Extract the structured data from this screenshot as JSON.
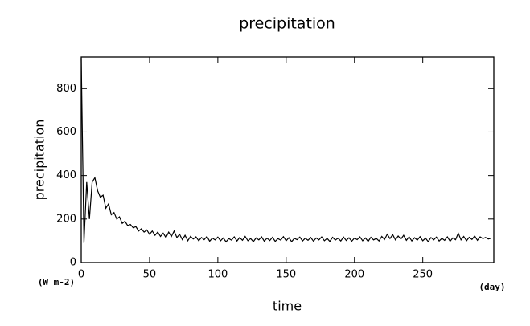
{
  "chart_data": {
    "type": "line",
    "title": "precipitation",
    "xlabel": "time",
    "ylabel": "precipitation",
    "x_unit": "(day)",
    "y_unit": "(W m-2)",
    "xlim": [
      0,
      302
    ],
    "ylim": [
      0,
      945
    ],
    "xticks": [
      0,
      50,
      100,
      150,
      200,
      250
    ],
    "yticks": [
      0,
      200,
      400,
      600,
      800
    ],
    "series": [
      {
        "name": "precipitation",
        "color": "#000000",
        "x": [
          0,
          2,
          4,
          6,
          8,
          10,
          12,
          14,
          16,
          18,
          20,
          22,
          24,
          26,
          28,
          30,
          32,
          34,
          36,
          38,
          40,
          42,
          44,
          46,
          48,
          50,
          52,
          54,
          56,
          58,
          60,
          62,
          64,
          66,
          68,
          70,
          72,
          74,
          76,
          78,
          80,
          82,
          84,
          86,
          88,
          90,
          92,
          94,
          96,
          98,
          100,
          102,
          104,
          106,
          108,
          110,
          112,
          114,
          116,
          118,
          120,
          122,
          124,
          126,
          128,
          130,
          132,
          134,
          136,
          138,
          140,
          142,
          144,
          146,
          148,
          150,
          152,
          154,
          156,
          158,
          160,
          162,
          164,
          166,
          168,
          170,
          172,
          174,
          176,
          178,
          180,
          182,
          184,
          186,
          188,
          190,
          192,
          194,
          196,
          198,
          200,
          202,
          204,
          206,
          208,
          210,
          212,
          214,
          216,
          218,
          220,
          222,
          224,
          226,
          228,
          230,
          232,
          234,
          236,
          238,
          240,
          242,
          244,
          246,
          248,
          250,
          252,
          254,
          256,
          258,
          260,
          262,
          264,
          266,
          268,
          270,
          272,
          274,
          276,
          278,
          280,
          282,
          284,
          286,
          288,
          290,
          292,
          294,
          296,
          298,
          300
        ],
        "values": [
          940,
          90,
          370,
          200,
          370,
          390,
          330,
          300,
          310,
          250,
          270,
          220,
          230,
          200,
          210,
          180,
          190,
          170,
          175,
          160,
          165,
          145,
          155,
          140,
          150,
          130,
          145,
          125,
          140,
          120,
          135,
          115,
          140,
          120,
          145,
          115,
          130,
          105,
          125,
          100,
          120,
          108,
          118,
          100,
          115,
          105,
          120,
          98,
          112,
          104,
          117,
          100,
          113,
          95,
          110,
          103,
          118,
          99,
          115,
          102,
          120,
          100,
          110,
          96,
          113,
          104,
          118,
          98,
          112,
          101,
          116,
          97,
          110,
          103,
          119,
          100,
          114,
          96,
          111,
          105,
          117,
          99,
          112,
          102,
          115,
          98,
          113,
          104,
          118,
          100,
          111,
          97,
          116,
          103,
          112,
          99,
          117,
          101,
          114,
          98,
          112,
          105,
          118,
          100,
          113,
          97,
          116,
          104,
          111,
          99,
          120,
          106,
          130,
          110,
          128,
          104,
          122,
          108,
          125,
          102,
          118,
          99,
          114,
          103,
          119,
          100,
          112,
          96,
          115,
          104,
          117,
          99,
          111,
          102,
          118,
          98,
          113,
          105,
          135,
          104,
          120,
          100,
          116,
          106,
          122,
          102,
          118,
          110,
          115,
          108,
          112
        ]
      }
    ]
  }
}
